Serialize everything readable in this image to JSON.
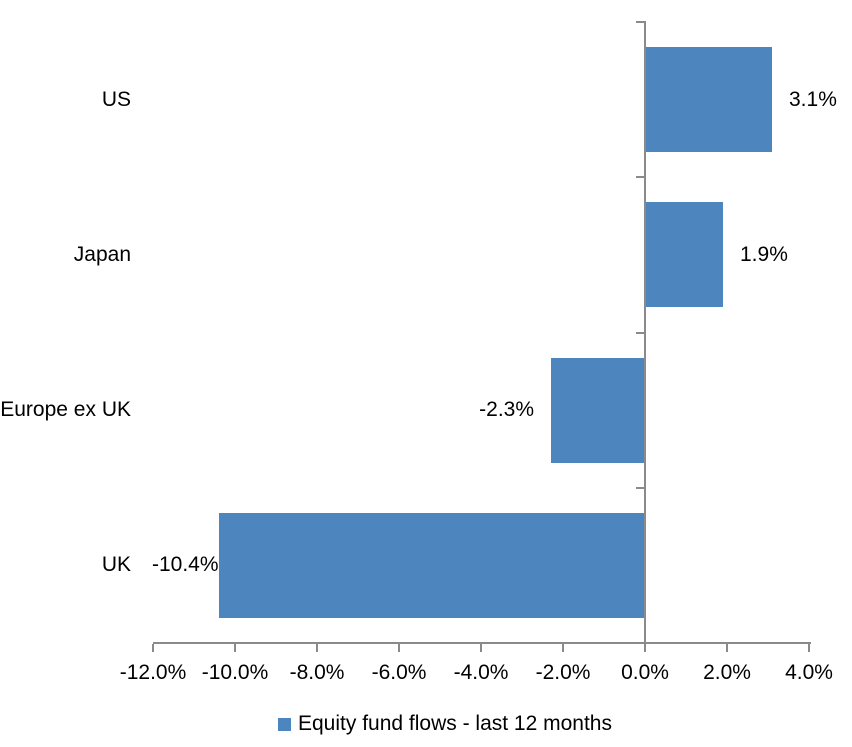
{
  "chart_data": {
    "type": "bar",
    "orientation": "horizontal",
    "title": "",
    "categories": [
      "US",
      "Japan",
      "Europe ex UK",
      "UK"
    ],
    "series": [
      {
        "name": "Equity fund flows - last 12 months",
        "values": [
          3.1,
          1.9,
          -2.3,
          -10.4
        ],
        "data_labels": [
          "3.1%",
          "1.9%",
          "-2.3%",
          "-10.4%"
        ]
      }
    ],
    "xlabel": "",
    "ylabel": "",
    "xlim": [
      -12,
      4
    ],
    "x_ticks": [
      -12,
      -10,
      -8,
      -6,
      -4,
      -2,
      0,
      2,
      4
    ],
    "x_tick_labels": [
      "-12.0%",
      "-10.0%",
      "-8.0%",
      "-6.0%",
      "-4.0%",
      "-2.0%",
      "0.0%",
      "2.0%",
      "4.0%"
    ],
    "grid": false,
    "legend_position": "bottom",
    "legend_label": "Equity fund flows - last 12 months",
    "colors": {
      "bar": "#4D86BE",
      "axis": "#8A8A8A",
      "text": "#000000",
      "background": "#ffffff"
    }
  }
}
